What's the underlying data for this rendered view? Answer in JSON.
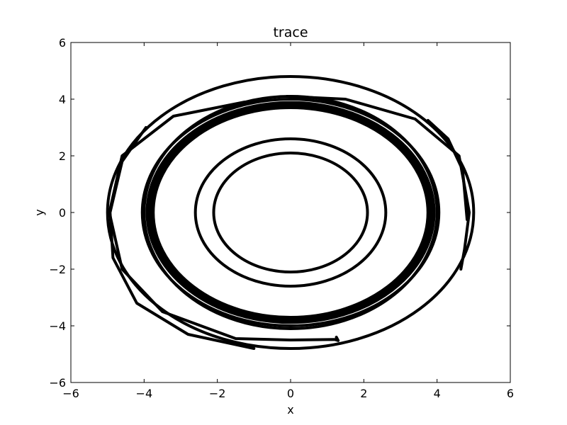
{
  "chart_data": {
    "type": "line",
    "title": "trace",
    "xlabel": "x",
    "ylabel": "y",
    "xlim": [
      -6,
      6
    ],
    "ylim": [
      -6,
      6
    ],
    "xticks": [
      -6,
      -4,
      -2,
      0,
      2,
      4,
      6
    ],
    "yticks": [
      -6,
      -4,
      -2,
      0,
      2,
      4,
      6
    ],
    "xtick_labels": [
      "−6",
      "−4",
      "−2",
      "0",
      "2",
      "4",
      "6"
    ],
    "ytick_labels": [
      "−6",
      "−4",
      "−2",
      "0",
      "2",
      "4",
      "6"
    ],
    "grid": false,
    "line_color": "#000000",
    "series": [
      {
        "rings": [
          {
            "rx": 2.1,
            "ry": 2.1
          },
          {
            "rx": 2.6,
            "ry": 2.6
          },
          {
            "rx": 3.75,
            "ry": 3.7
          },
          {
            "rx": 3.8,
            "ry": 3.76
          },
          {
            "rx": 3.85,
            "ry": 3.82
          },
          {
            "rx": 3.92,
            "ry": 3.88
          },
          {
            "rx": 4.05,
            "ry": 4.0
          },
          {
            "rx": 4.0,
            "ry": 4.1
          },
          {
            "rx": 5.0,
            "ry": 4.8
          }
        ],
        "arcs": [
          {
            "x": [
              -1.25,
              -3.2,
              -4.6,
              -4.95,
              -4.6,
              -3.5,
              -1.5,
              0.0,
              1.2,
              1.3,
              1.25
            ],
            "y": [
              3.9,
              3.4,
              2.0,
              0.0,
              -2.0,
              -3.5,
              -4.45,
              -4.5,
              -4.48,
              -4.52,
              -4.4
            ]
          },
          {
            "x": [
              -3.95,
              -4.6,
              -4.93,
              -4.85,
              -4.2,
              -2.8,
              -1.0
            ],
            "y": [
              3.0,
              1.8,
              0.0,
              -1.6,
              -3.2,
              -4.3,
              -4.8
            ]
          },
          {
            "x": [
              -0.1,
              1.5,
              3.4,
              4.6,
              4.88,
              4.75,
              4.65
            ],
            "y": [
              4.1,
              4.0,
              3.3,
              2.0,
              0.0,
              -1.3,
              -2.0
            ]
          },
          {
            "x": [
              3.75,
              4.3,
              4.7,
              4.82
            ],
            "y": [
              3.25,
              2.6,
              1.5,
              -0.25
            ]
          }
        ]
      }
    ]
  }
}
